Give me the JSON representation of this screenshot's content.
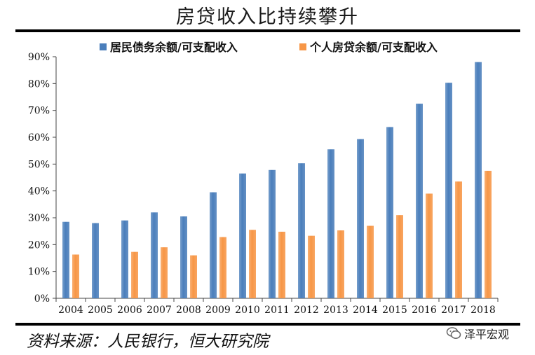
{
  "title": "房贷收入比持续攀升",
  "source": "资料来源：人民银行，恒大研究院",
  "watermark": "泽平宏观",
  "colors": {
    "series1": "#4a7ebb",
    "series2": "#f79646"
  },
  "chart_data": {
    "type": "bar",
    "categories": [
      "2004",
      "2005",
      "2006",
      "2007",
      "2008",
      "2009",
      "2010",
      "2011",
      "2012",
      "2013",
      "2014",
      "2015",
      "2016",
      "2017",
      "2018"
    ],
    "series": [
      {
        "name": "居民债务余额/可支配收入",
        "color": "#4a7ebb",
        "values": [
          28.5,
          28.0,
          29.0,
          32.0,
          30.5,
          39.5,
          46.5,
          47.8,
          50.3,
          55.5,
          59.3,
          63.8,
          72.5,
          80.3,
          88.0
        ]
      },
      {
        "name": "个人房贷余额/可支配收入",
        "color": "#f79646",
        "values": [
          16.3,
          null,
          17.3,
          19.0,
          16.0,
          22.8,
          25.5,
          24.8,
          23.3,
          25.3,
          27.0,
          31.0,
          39.0,
          43.5,
          47.5
        ]
      }
    ],
    "yticks": [
      "0%",
      "10%",
      "20%",
      "30%",
      "40%",
      "50%",
      "60%",
      "70%",
      "80%",
      "90%"
    ],
    "ylim": [
      0,
      90
    ],
    "legend": "top",
    "grid": false
  }
}
